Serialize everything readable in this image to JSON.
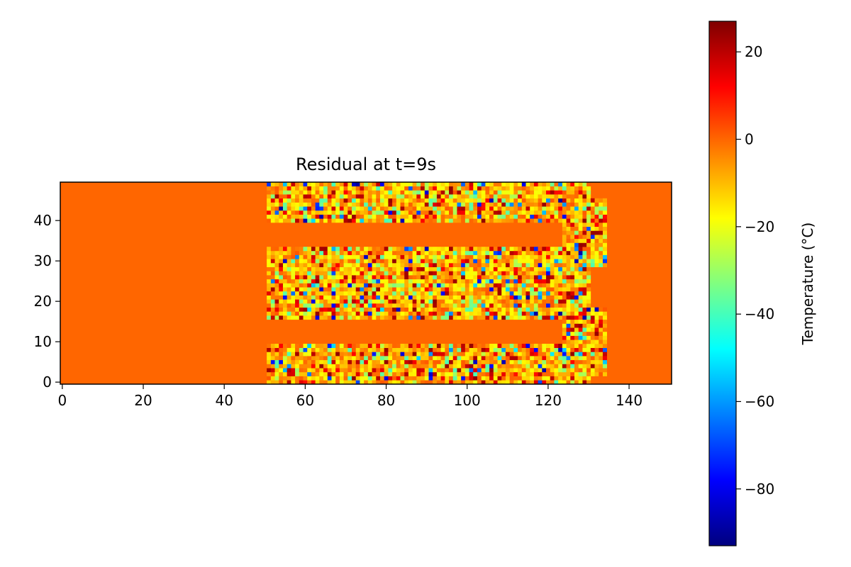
{
  "chart_data": {
    "type": "heatmap",
    "title": "Residual at t=9s",
    "xlabel": "",
    "ylabel": "",
    "x_range": [
      0,
      150
    ],
    "y_range": [
      0,
      49
    ],
    "xlim": [
      -0.5,
      150.5
    ],
    "ylim": [
      -0.5,
      49.5
    ],
    "x_ticks": [
      0,
      20,
      40,
      60,
      80,
      100,
      120,
      140
    ],
    "y_ticks": [
      0,
      10,
      20,
      30,
      40
    ],
    "x_tick_labels": [
      "0",
      "20",
      "40",
      "60",
      "80",
      "100",
      "120",
      "140"
    ],
    "y_tick_labels": [
      "0",
      "10",
      "20",
      "30",
      "40"
    ],
    "grid": false,
    "colormap": "jet",
    "colorbar": {
      "label": "Temperature (°C)",
      "vmin": -93,
      "vmax": 27,
      "ticks": [
        20,
        0,
        -20,
        -40,
        -60,
        -80
      ],
      "tick_labels": [
        "20",
        "0",
        "−20",
        "−40",
        "−60",
        "−80"
      ]
    },
    "background_value": 0,
    "serpentine_path": {
      "x_start": 51,
      "x_end": 130,
      "bands_y": [
        [
          0,
          9
        ],
        [
          16,
          24
        ],
        [
          25,
          33
        ],
        [
          40,
          49
        ]
      ],
      "turns": [
        {
          "x": [
            124,
            134
          ],
          "y": [
            2,
            18
          ]
        },
        {
          "x": [
            124,
            134
          ],
          "y": [
            29,
            45
          ]
        }
      ]
    }
  }
}
